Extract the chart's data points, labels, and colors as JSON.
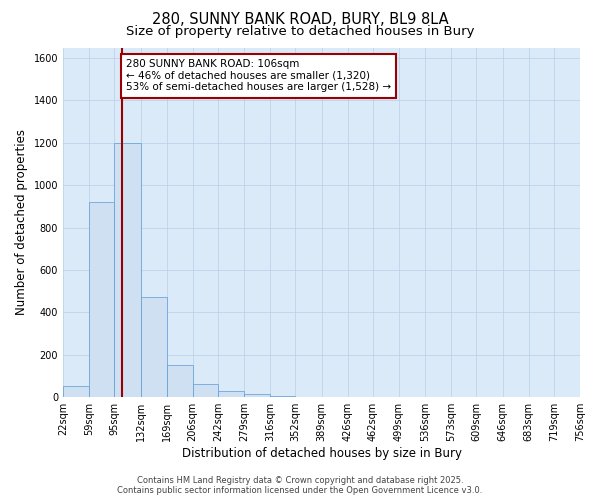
{
  "title": "280, SUNNY BANK ROAD, BURY, BL9 8LA",
  "subtitle": "Size of property relative to detached houses in Bury",
  "xlabel": "Distribution of detached houses by size in Bury",
  "ylabel": "Number of detached properties",
  "bar_color": "#cfe0f3",
  "bar_edge_color": "#5b9bd5",
  "plot_bg_color": "#daeaf8",
  "fig_bg_color": "#ffffff",
  "grid_color": "#b8cfe8",
  "vline_x": 106,
  "vline_color": "#990000",
  "bin_edges": [
    22,
    59,
    95,
    132,
    169,
    206,
    242,
    279,
    316,
    352,
    389,
    426,
    462,
    499,
    536,
    573,
    609,
    646,
    683,
    719,
    756
  ],
  "bin_labels": [
    "22sqm",
    "59sqm",
    "95sqm",
    "132sqm",
    "169sqm",
    "206sqm",
    "242sqm",
    "279sqm",
    "316sqm",
    "352sqm",
    "389sqm",
    "426sqm",
    "462sqm",
    "499sqm",
    "536sqm",
    "573sqm",
    "609sqm",
    "646sqm",
    "683sqm",
    "719sqm",
    "756sqm"
  ],
  "counts": [
    55,
    920,
    1200,
    475,
    150,
    60,
    30,
    15,
    5,
    0,
    0,
    0,
    0,
    0,
    0,
    0,
    0,
    0,
    0,
    0
  ],
  "ylim": [
    0,
    1650
  ],
  "yticks": [
    0,
    200,
    400,
    600,
    800,
    1000,
    1200,
    1400,
    1600
  ],
  "annotation_line1": "280 SUNNY BANK ROAD: 106sqm",
  "annotation_line2": "← 46% of detached houses are smaller (1,320)",
  "annotation_line3": "53% of semi-detached houses are larger (1,528) →",
  "annotation_box_color": "#ffffff",
  "annotation_box_edge": "#990000",
  "footer_line1": "Contains HM Land Registry data © Crown copyright and database right 2025.",
  "footer_line2": "Contains public sector information licensed under the Open Government Licence v3.0.",
  "title_fontsize": 10.5,
  "subtitle_fontsize": 9.5,
  "axis_label_fontsize": 8.5,
  "tick_fontsize": 7,
  "annotation_fontsize": 7.5,
  "footer_fontsize": 6
}
